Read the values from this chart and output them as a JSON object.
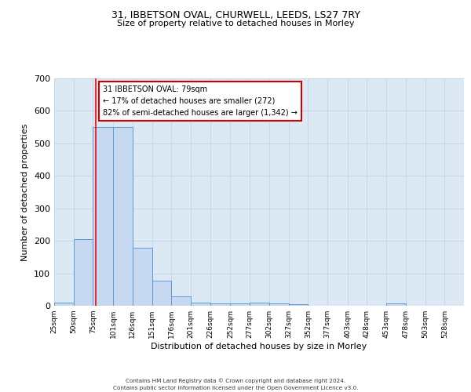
{
  "title1": "31, IBBETSON OVAL, CHURWELL, LEEDS, LS27 7RY",
  "title2": "Size of property relative to detached houses in Morley",
  "xlabel": "Distribution of detached houses by size in Morley",
  "ylabel": "Number of detached properties",
  "bin_labels": [
    "25sqm",
    "50sqm",
    "75sqm",
    "101sqm",
    "126sqm",
    "151sqm",
    "176sqm",
    "201sqm",
    "226sqm",
    "252sqm",
    "277sqm",
    "302sqm",
    "327sqm",
    "352sqm",
    "377sqm",
    "403sqm",
    "428sqm",
    "453sqm",
    "478sqm",
    "503sqm",
    "528sqm"
  ],
  "bar_values": [
    10,
    205,
    550,
    550,
    178,
    77,
    30,
    10,
    7,
    8,
    10,
    8,
    5,
    0,
    0,
    0,
    0,
    7,
    0,
    0,
    0
  ],
  "bar_color": "#c6d9f0",
  "bar_edge_color": "#5b9bd5",
  "grid_color": "#c8d8ea",
  "background_color": "#dce9f5",
  "red_line_x": 79,
  "annotation_title": "31 IBBETSON OVAL: 79sqm",
  "annotation_line1": "← 17% of detached houses are smaller (272)",
  "annotation_line2": "82% of semi-detached houses are larger (1,342) →",
  "annotation_box_color": "#ffffff",
  "annotation_box_edge": "#cc0000",
  "ylim": [
    0,
    700
  ],
  "yticks": [
    0,
    100,
    200,
    300,
    400,
    500,
    600,
    700
  ],
  "footer1": "Contains HM Land Registry data © Crown copyright and database right 2024.",
  "footer2": "Contains public sector information licensed under the Open Government Licence v3.0.",
  "bin_edges": [
    25,
    50,
    75,
    101,
    126,
    151,
    176,
    201,
    226,
    252,
    277,
    302,
    327,
    352,
    377,
    403,
    428,
    453,
    478,
    503,
    528,
    553
  ]
}
